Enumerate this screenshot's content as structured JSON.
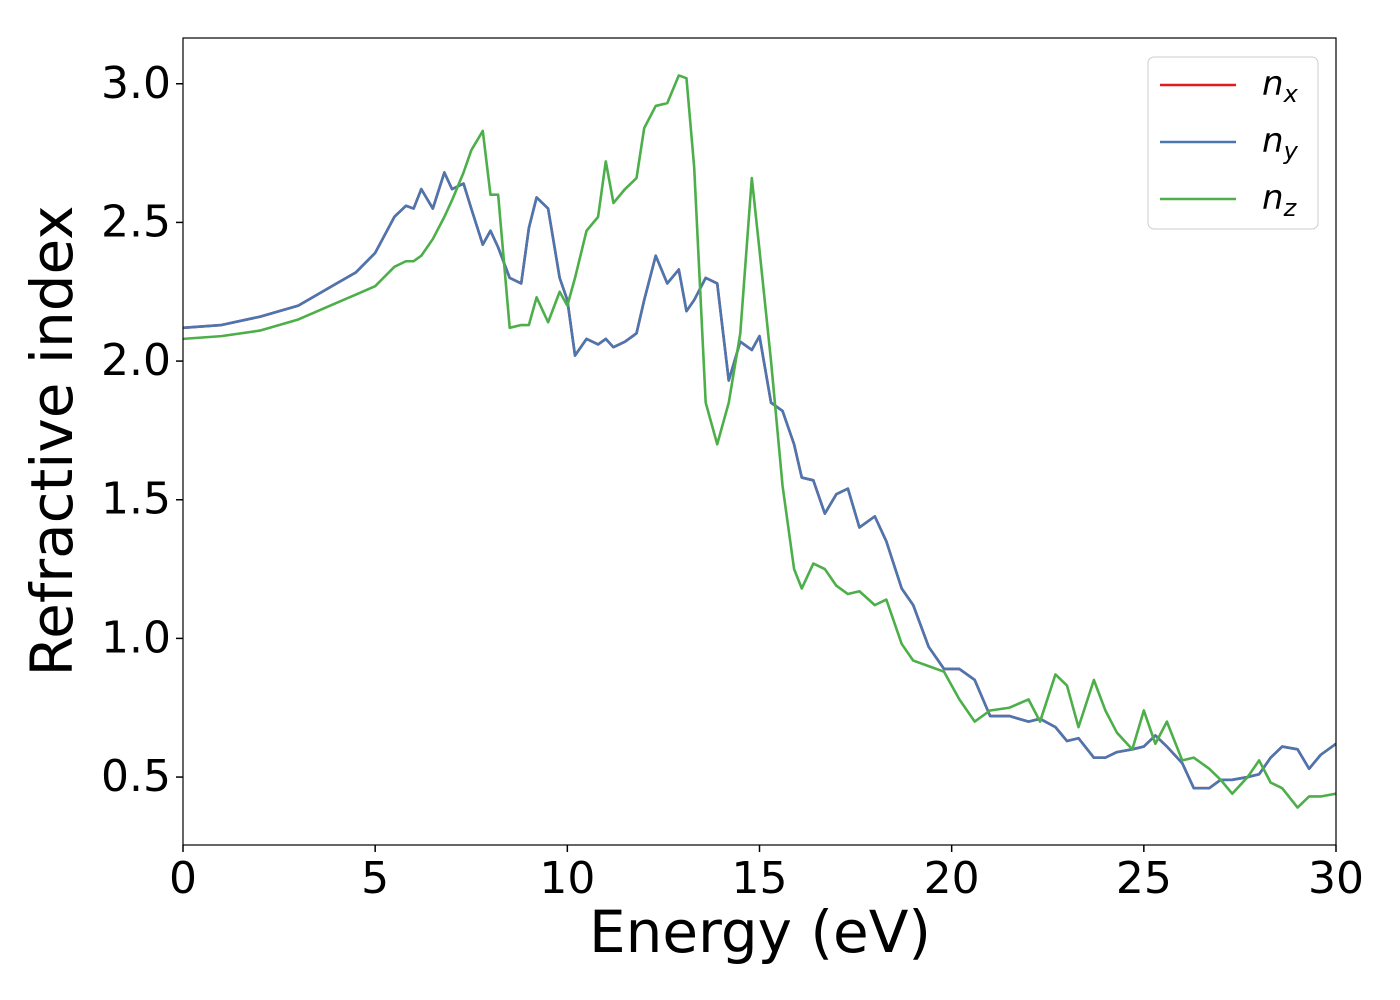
{
  "chart_data": {
    "type": "line",
    "xlabel": "Energy (eV)",
    "ylabel": "Refractive index",
    "x": [
      0,
      1,
      2,
      3,
      4,
      4.5,
      5,
      5.5,
      5.8,
      6,
      6.2,
      6.5,
      6.8,
      7,
      7.3,
      7.5,
      7.8,
      8,
      8.2,
      8.5,
      8.8,
      9,
      9.2,
      9.5,
      9.8,
      10,
      10.2,
      10.5,
      10.8,
      11,
      11.2,
      11.5,
      11.8,
      12,
      12.3,
      12.6,
      12.9,
      13.1,
      13.3,
      13.6,
      13.9,
      14.2,
      14.5,
      14.8,
      15,
      15.3,
      15.6,
      15.9,
      16.1,
      16.4,
      16.7,
      17,
      17.3,
      17.6,
      18,
      18.3,
      18.7,
      19,
      19.4,
      19.8,
      20.2,
      20.6,
      21,
      21.5,
      22,
      22.3,
      22.7,
      23,
      23.3,
      23.7,
      24,
      24.3,
      24.7,
      25,
      25.3,
      25.6,
      26,
      26.3,
      26.7,
      27,
      27.3,
      27.7,
      28,
      28.3,
      28.6,
      29,
      29.3,
      29.6,
      30
    ],
    "series": [
      {
        "name": "nx",
        "color": "#e41a1c",
        "values": [
          2.12,
          2.13,
          2.16,
          2.2,
          2.28,
          2.32,
          2.39,
          2.52,
          2.56,
          2.55,
          2.62,
          2.55,
          2.68,
          2.62,
          2.64,
          2.55,
          2.42,
          2.47,
          2.41,
          2.3,
          2.28,
          2.48,
          2.59,
          2.55,
          2.3,
          2.22,
          2.02,
          2.08,
          2.06,
          2.08,
          2.05,
          2.07,
          2.1,
          2.22,
          2.38,
          2.28,
          2.33,
          2.18,
          2.22,
          2.3,
          2.28,
          1.93,
          2.07,
          2.04,
          2.09,
          1.85,
          1.82,
          1.7,
          1.58,
          1.57,
          1.45,
          1.52,
          1.54,
          1.4,
          1.44,
          1.35,
          1.18,
          1.12,
          0.97,
          0.89,
          0.89,
          0.85,
          0.72,
          0.72,
          0.7,
          0.71,
          0.68,
          0.63,
          0.64,
          0.57,
          0.57,
          0.59,
          0.6,
          0.61,
          0.65,
          0.61,
          0.55,
          0.46,
          0.46,
          0.49,
          0.49,
          0.5,
          0.51,
          0.57,
          0.61,
          0.6,
          0.53,
          0.58,
          0.62
        ]
      },
      {
        "name": "ny",
        "color": "#4a77b0",
        "values": [
          2.12,
          2.13,
          2.16,
          2.2,
          2.28,
          2.32,
          2.39,
          2.52,
          2.56,
          2.55,
          2.62,
          2.55,
          2.68,
          2.62,
          2.64,
          2.55,
          2.42,
          2.47,
          2.41,
          2.3,
          2.28,
          2.48,
          2.59,
          2.55,
          2.3,
          2.22,
          2.02,
          2.08,
          2.06,
          2.08,
          2.05,
          2.07,
          2.1,
          2.22,
          2.38,
          2.28,
          2.33,
          2.18,
          2.22,
          2.3,
          2.28,
          1.93,
          2.07,
          2.04,
          2.09,
          1.85,
          1.82,
          1.7,
          1.58,
          1.57,
          1.45,
          1.52,
          1.54,
          1.4,
          1.44,
          1.35,
          1.18,
          1.12,
          0.97,
          0.89,
          0.89,
          0.85,
          0.72,
          0.72,
          0.7,
          0.71,
          0.68,
          0.63,
          0.64,
          0.57,
          0.57,
          0.59,
          0.6,
          0.61,
          0.65,
          0.61,
          0.55,
          0.46,
          0.46,
          0.49,
          0.49,
          0.5,
          0.51,
          0.57,
          0.61,
          0.6,
          0.53,
          0.58,
          0.62
        ]
      },
      {
        "name": "nz",
        "color": "#4daf4a",
        "values": [
          2.08,
          2.09,
          2.11,
          2.15,
          2.21,
          2.24,
          2.27,
          2.34,
          2.36,
          2.36,
          2.38,
          2.44,
          2.52,
          2.58,
          2.68,
          2.76,
          2.83,
          2.6,
          2.6,
          2.12,
          2.13,
          2.13,
          2.23,
          2.14,
          2.25,
          2.2,
          2.3,
          2.47,
          2.52,
          2.72,
          2.57,
          2.62,
          2.66,
          2.84,
          2.92,
          2.93,
          3.03,
          3.02,
          2.7,
          1.85,
          1.7,
          1.85,
          2.1,
          2.66,
          2.4,
          2.0,
          1.55,
          1.25,
          1.18,
          1.27,
          1.25,
          1.19,
          1.16,
          1.17,
          1.12,
          1.14,
          0.98,
          0.92,
          0.9,
          0.88,
          0.78,
          0.7,
          0.74,
          0.75,
          0.78,
          0.7,
          0.87,
          0.83,
          0.68,
          0.85,
          0.74,
          0.66,
          0.6,
          0.74,
          0.62,
          0.7,
          0.56,
          0.57,
          0.53,
          0.49,
          0.44,
          0.5,
          0.56,
          0.48,
          0.46,
          0.39,
          0.43,
          0.43,
          0.44
        ]
      }
    ],
    "xlim": [
      0,
      30
    ],
    "xticks": [
      0,
      5,
      10,
      15,
      20,
      25,
      30
    ],
    "ylim": [
      0.255,
      3.165
    ],
    "yticks": [
      0.5,
      {
        "value": 1,
        "label": "1.0"
      },
      1.5,
      {
        "value": 2,
        "label": "2.0"
      },
      2.5,
      {
        "value": 3,
        "label": "3.0"
      }
    ],
    "grid": false,
    "legend": "upper right"
  }
}
